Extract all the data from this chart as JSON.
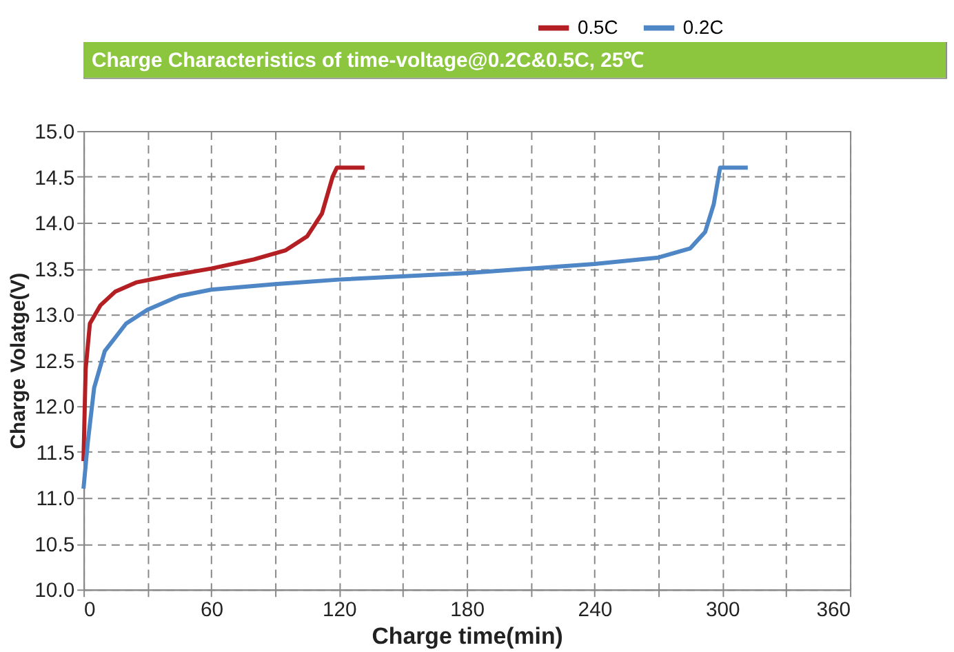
{
  "chart_data": {
    "type": "line",
    "title": "Charge  Characteristics of time-voltage@0.2C&0.5C, 25℃",
    "xlabel": "Charge time(min)",
    "ylabel": "Charge Volatge(V)",
    "xlim": [
      0,
      360
    ],
    "xticks": [
      0,
      {
        "value": 30,
        "label": null
      },
      60,
      {
        "value": 90,
        "label": null
      },
      120,
      {
        "value": 150,
        "label": null
      },
      180,
      {
        "value": 210,
        "label": null
      },
      240,
      {
        "value": 270,
        "label": null
      },
      300,
      {
        "value": 330,
        "label": null
      },
      360
    ],
    "ylim": [
      10.0,
      15.0
    ],
    "yticks": [
      {
        "value": 10,
        "label": "10.0"
      },
      10.5,
      {
        "value": 11,
        "label": "11.0"
      },
      11.5,
      {
        "value": 12,
        "label": "12.0"
      },
      12.5,
      {
        "value": 13,
        "label": "13.0"
      },
      13.5,
      {
        "value": 14,
        "label": "14.0"
      },
      14.5,
      {
        "value": 15,
        "label": "15.0"
      }
    ],
    "grid": true,
    "legend": "top right",
    "line_style": "solid",
    "marker": "none",
    "series": [
      {
        "name": "0.5C",
        "color": "#b41f24",
        "x": [
          0,
          1,
          3,
          8,
          15,
          25,
          40,
          60,
          80,
          95,
          105,
          112,
          117,
          119,
          132
        ],
        "values": [
          11.4,
          12.4,
          12.9,
          13.1,
          13.25,
          13.35,
          13.42,
          13.5,
          13.6,
          13.7,
          13.85,
          14.1,
          14.5,
          14.6,
          14.6
        ]
      },
      {
        "name": "0.2C",
        "color": "#4f86c6",
        "x": [
          0,
          2,
          5,
          10,
          20,
          30,
          45,
          60,
          90,
          120,
          180,
          240,
          270,
          285,
          292,
          296,
          299,
          312
        ],
        "values": [
          11.1,
          11.6,
          12.2,
          12.6,
          12.9,
          13.05,
          13.2,
          13.27,
          13.33,
          13.38,
          13.45,
          13.55,
          13.62,
          13.72,
          13.9,
          14.2,
          14.6,
          14.6
        ]
      }
    ]
  }
}
